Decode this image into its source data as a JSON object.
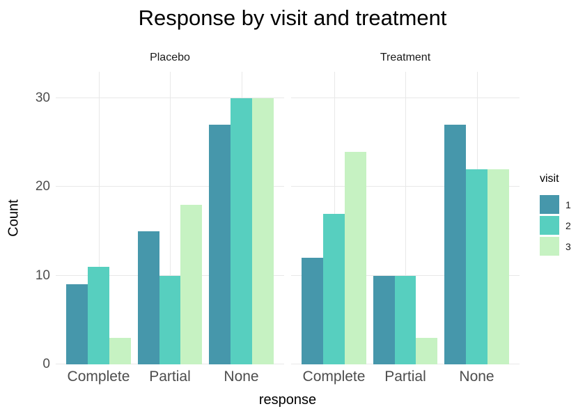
{
  "legend": {
    "title": "visit",
    "entries": [
      {
        "label": "1",
        "color": "#4697ab"
      },
      {
        "label": "2",
        "color": "#57cfbf"
      },
      {
        "label": "3",
        "color": "#c6f2c2"
      }
    ]
  },
  "chart_data": {
    "type": "bar",
    "grouped": true,
    "title": "Response by visit and treatment",
    "xlabel": "response",
    "ylabel": "Count",
    "ylim": [
      0,
      33
    ],
    "yticks": [
      0,
      10,
      20,
      30
    ],
    "grid": "major-horizontal-and-category-vertical",
    "legend_position": "right",
    "background": "#ffffff",
    "gridline_color": "#e8e8e8",
    "colors": {
      "1": "#4697ab",
      "2": "#57cfbf",
      "3": "#c6f2c2"
    },
    "facets": [
      {
        "label": "Placebo",
        "categories": [
          "Complete",
          "Partial",
          "None"
        ],
        "series": [
          {
            "name": "1",
            "values": [
              9,
              15,
              27
            ]
          },
          {
            "name": "2",
            "values": [
              11,
              10,
              30
            ]
          },
          {
            "name": "3",
            "values": [
              3,
              18,
              30
            ]
          }
        ]
      },
      {
        "label": "Treatment",
        "categories": [
          "Complete",
          "Partial",
          "None"
        ],
        "series": [
          {
            "name": "1",
            "values": [
              12,
              10,
              27
            ]
          },
          {
            "name": "2",
            "values": [
              17,
              10,
              22
            ]
          },
          {
            "name": "3",
            "values": [
              24,
              3,
              22
            ]
          }
        ]
      }
    ]
  }
}
